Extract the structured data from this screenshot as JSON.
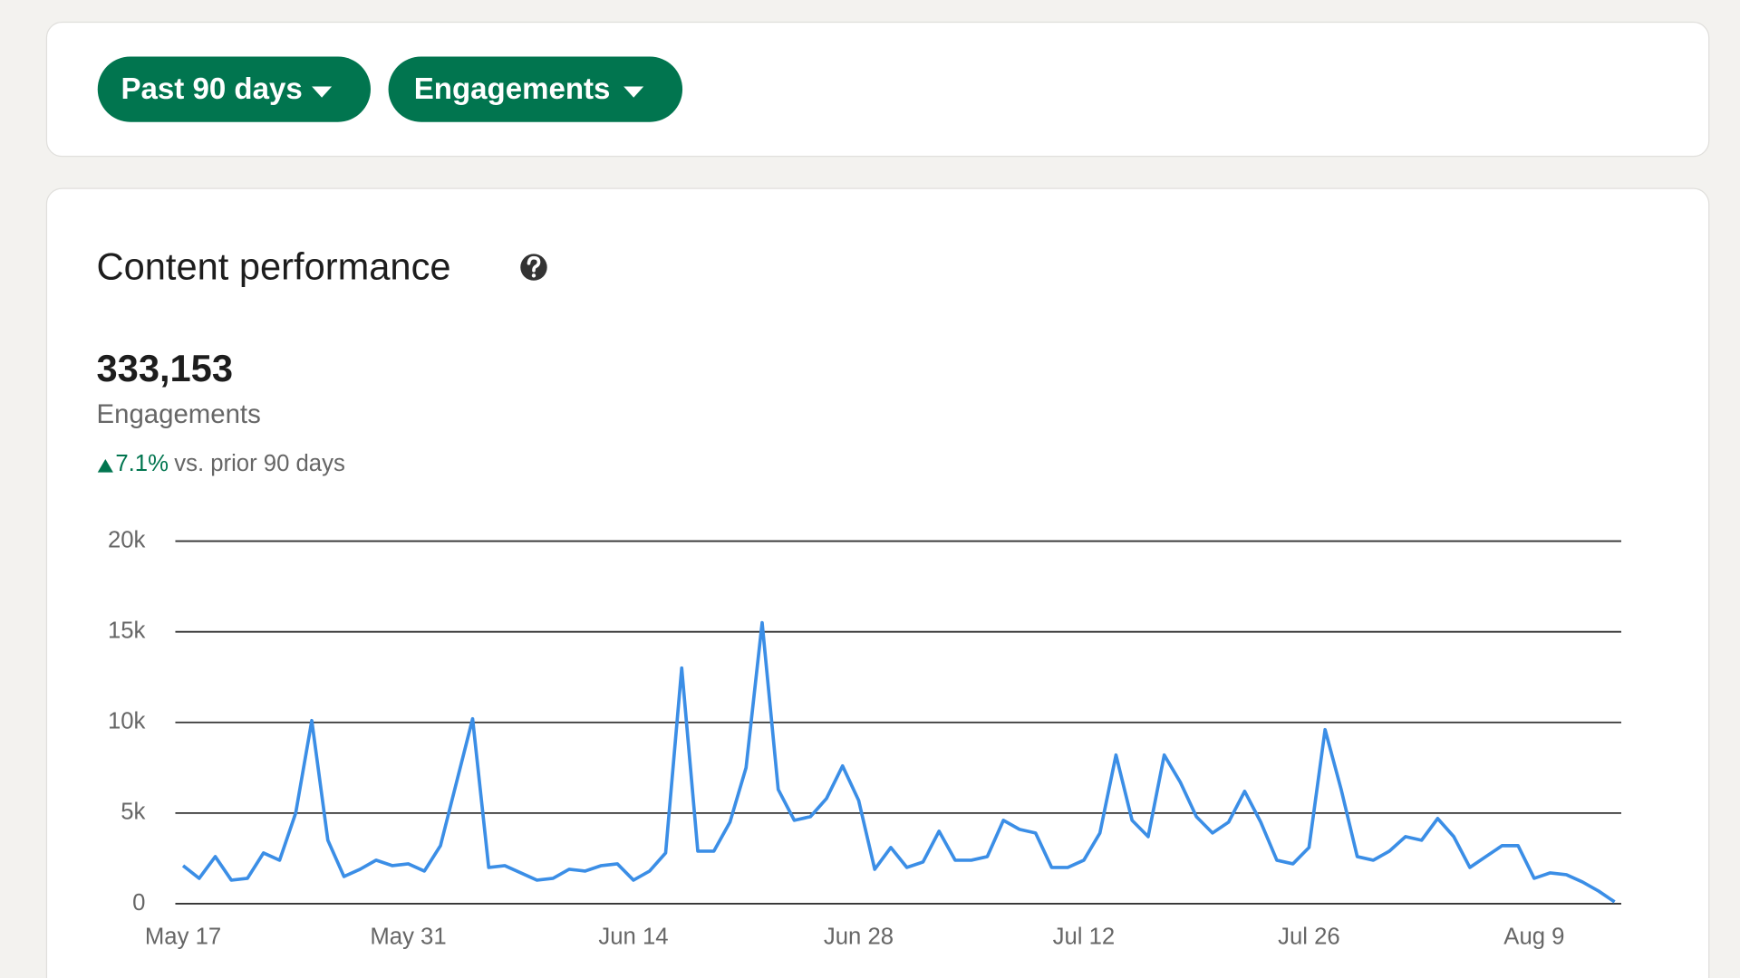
{
  "filters": [
    "Past 90 days",
    "Engagements"
  ],
  "section_title": "Content performance",
  "total": "333,153",
  "metric_label": "Engagements",
  "change": "7.1%",
  "change_text": "vs. prior 90 days",
  "chart_data": {
    "type": "line",
    "color": "#3b8ee6",
    "grid": true,
    "categories": [
      "May 17",
      null,
      null,
      null,
      null,
      null,
      null,
      null,
      null,
      null,
      null,
      null,
      null,
      null,
      "May 31",
      null,
      null,
      null,
      null,
      null,
      null,
      null,
      null,
      null,
      null,
      null,
      null,
      null,
      "Jun 14",
      null,
      null,
      null,
      null,
      null,
      null,
      null,
      null,
      null,
      null,
      null,
      null,
      null,
      "Jun 28",
      null,
      null,
      null,
      null,
      null,
      null,
      null,
      null,
      null,
      null,
      null,
      null,
      null,
      "Jul 12",
      null,
      null,
      null,
      null,
      null,
      null,
      null,
      null,
      null,
      null,
      null,
      null,
      null,
      "Jul 26",
      null,
      null,
      null,
      null,
      null,
      null,
      null,
      null,
      null,
      null,
      null,
      null,
      null,
      "Aug 9",
      null,
      null,
      null,
      null,
      null
    ],
    "values": [
      2100,
      1400,
      2600,
      1300,
      1400,
      2800,
      2400,
      5000,
      10100,
      3500,
      1500,
      1900,
      2400,
      2100,
      2200,
      1800,
      3200,
      6700,
      10200,
      2000,
      2100,
      1700,
      1300,
      1400,
      1900,
      1800,
      2100,
      2200,
      1300,
      1800,
      2800,
      13000,
      2900,
      2900,
      4500,
      7500,
      15500,
      6300,
      4600,
      4800,
      5800,
      7600,
      5700,
      1900,
      3100,
      2000,
      2300,
      4000,
      2400,
      2400,
      2600,
      4600,
      4100,
      3900,
      2000,
      2000,
      2400,
      3900,
      8200,
      4600,
      3700,
      8200,
      6700,
      4800,
      3900,
      4500,
      6200,
      4500,
      2400,
      2200,
      3100,
      9600,
      6300,
      2600,
      2400,
      2900,
      3700,
      3500,
      4700,
      3700,
      2000,
      2600,
      3200,
      3200,
      1400,
      1700,
      1600,
      1200,
      700,
      100
    ],
    "ylim": [
      0,
      20000
    ],
    "yticks": [
      0,
      {
        "value": 5000,
        "label": "5k"
      },
      {
        "value": 10000,
        "label": "10k"
      },
      {
        "value": 15000,
        "label": "15k"
      },
      {
        "value": 20000,
        "label": "20k"
      }
    ]
  }
}
